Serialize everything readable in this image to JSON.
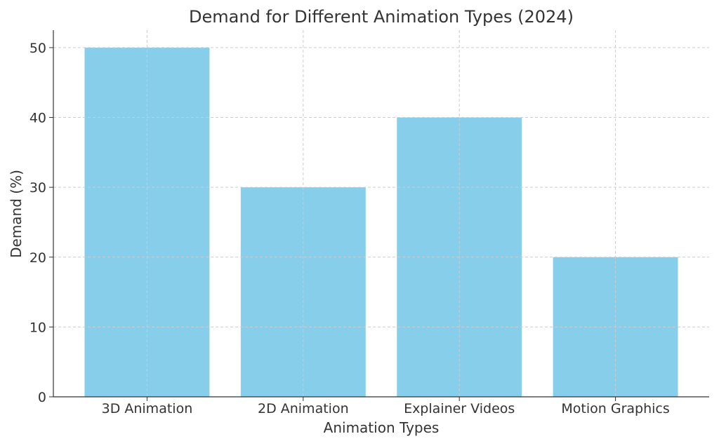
{
  "chart_data": {
    "type": "bar",
    "title": "Demand for Different Animation Types (2024)",
    "xlabel": "Animation Types",
    "ylabel": "Demand (%)",
    "categories": [
      "3D Animation",
      "2D Animation",
      "Explainer Videos",
      "Motion Graphics"
    ],
    "values": [
      50,
      30,
      40,
      20
    ],
    "ylim": [
      0,
      52.5
    ],
    "yticks": [
      0,
      10,
      20,
      30,
      40,
      50
    ],
    "grid": true,
    "bar_color": "#87CEEB"
  }
}
